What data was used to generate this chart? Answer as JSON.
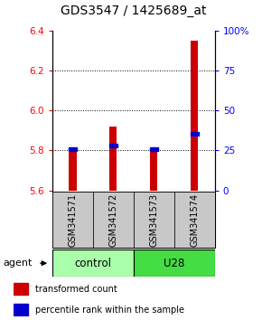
{
  "title": "GDS3547 / 1425689_at",
  "samples": [
    "GSM341571",
    "GSM341572",
    "GSM341573",
    "GSM341574"
  ],
  "bar_bottoms": [
    5.6,
    5.6,
    5.6,
    5.6
  ],
  "bar_tops": [
    5.81,
    5.92,
    5.81,
    6.35
  ],
  "percentile_values": [
    5.808,
    5.825,
    5.805,
    5.885
  ],
  "ylim_left": [
    5.6,
    6.4
  ],
  "ylim_right": [
    0,
    100
  ],
  "yticks_left": [
    5.6,
    5.8,
    6.0,
    6.2,
    6.4
  ],
  "yticks_right": [
    0,
    25,
    50,
    75,
    100
  ],
  "group_configs": [
    {
      "indices": [
        0,
        1
      ],
      "label": "control",
      "color": "#aaffaa"
    },
    {
      "indices": [
        2,
        3
      ],
      "label": "U28",
      "color": "#44dd44"
    }
  ],
  "bar_color": "#cc0000",
  "percentile_color": "#0000cc",
  "bar_width": 0.18,
  "agent_label": "agent",
  "legend_items": [
    {
      "color": "#cc0000",
      "label": "transformed count"
    },
    {
      "color": "#0000cc",
      "label": "percentile rank within the sample"
    }
  ],
  "sample_box_color": "#c8c8c8",
  "title_fontsize": 10,
  "tick_fontsize": 7.5,
  "label_fontsize": 8
}
